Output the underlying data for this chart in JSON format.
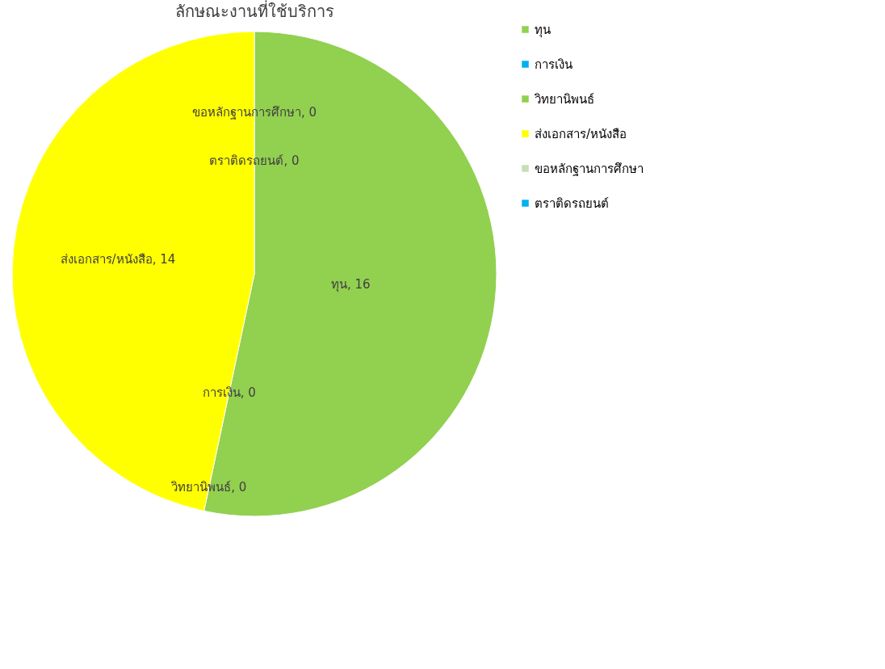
{
  "chart_data": {
    "type": "pie",
    "title": "ลักษณะงานที่ใช้บริการ",
    "categories": [
      "ทุน",
      "การเงิน",
      "วิทยานิพนธ์",
      "ส่งเอกสาร/หนังสือ",
      "ขอหลักฐานการศึกษา",
      "ตราติดรถยนต์"
    ],
    "values": [
      16,
      0,
      0,
      14,
      0,
      0
    ],
    "value_labels": [
      "ทุน, 16",
      "การเงิน, 0",
      "วิทยานิพนธ์, 0",
      "ส่งเอกสาร/หนังสือ, 14",
      "ขอหลักฐานการศึกษา, 0",
      "ตราติดรถยนต์, 0"
    ],
    "colors": [
      "#92d050",
      "#00b0f0",
      "#92d050",
      "#ffff00",
      "#c5e0b4",
      "#00b0f0"
    ],
    "legend": "right"
  }
}
